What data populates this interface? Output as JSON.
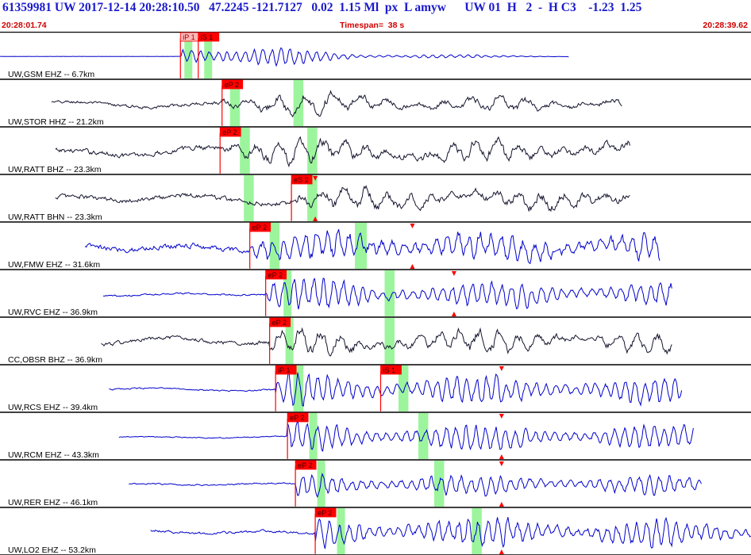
{
  "header": {
    "event_line": "61359981 UW 2017-12-14 20:28:10.50   47.2245 -121.7127   0.02  1.15 Ml  px  L amyw      UW 01  H   2  -  H C3    -1.23  1.25",
    "start_time": "20:28:01.74",
    "timespan": "Timespan=  38 s",
    "end_time": "20:28:39.62"
  },
  "colors": {
    "trace_blue": "#0000cc",
    "trace_dark": "#14142e",
    "pick_red": "#ff0000",
    "pick_pink": "#ffb6b6",
    "window_green": "#9cf59c",
    "separator": "#000000"
  },
  "chart_data": {
    "type": "line",
    "title": "",
    "x_label": "",
    "x_range_s": [
      0,
      37.88
    ],
    "channels": [
      {
        "label": "UW,GSM EHZ -- 6.7km",
        "color": "trace_blue",
        "trace_start": 0.0,
        "trace_end": 28.7,
        "noise_amp": 0.02,
        "signal_amp": 0.92,
        "decay": 0.18,
        "period": 0.45,
        "flat_pre": true,
        "picks": [
          {
            "label": "iP 1",
            "time": 9.1,
            "style": "pink"
          },
          {
            "label": "iS 1",
            "time": 10.0,
            "style": "red"
          }
        ],
        "windows": [
          [
            9.3,
            9.7
          ],
          [
            10.3,
            10.7
          ]
        ],
        "markers": []
      },
      {
        "label": "UW,STOR HHZ -- 21.2km",
        "color": "trace_dark",
        "trace_start": 2.6,
        "trace_end": 31.4,
        "noise_amp": 0.22,
        "signal_amp": 0.62,
        "decay": 0.04,
        "period": 1.4,
        "flat_pre": false,
        "picks": [
          {
            "label": "eP 2",
            "time": 11.2,
            "style": "red"
          }
        ],
        "windows": [
          [
            11.6,
            12.1
          ],
          [
            14.8,
            15.3
          ]
        ],
        "markers": []
      },
      {
        "label": "UW,RATT BHZ -- 23.3km",
        "color": "trace_dark",
        "trace_start": 2.8,
        "trace_end": 31.8,
        "noise_amp": 0.35,
        "signal_amp": 0.55,
        "decay": 0.02,
        "period": 1.1,
        "flat_pre": false,
        "picks": [
          {
            "label": "eP 2",
            "time": 11.1,
            "style": "red"
          }
        ],
        "windows": [
          [
            12.1,
            12.6
          ],
          [
            15.5,
            16.0
          ]
        ],
        "markers": []
      },
      {
        "label": "UW,RATT BHN -- 23.3km",
        "color": "trace_dark",
        "trace_start": 2.8,
        "trace_end": 31.8,
        "noise_amp": 0.35,
        "signal_amp": 0.55,
        "decay": 0.02,
        "period": 1.1,
        "flat_pre": false,
        "picks": [
          {
            "label": "eS 2",
            "time": 14.7,
            "style": "red"
          }
        ],
        "windows": [
          [
            12.3,
            12.8
          ],
          [
            15.5,
            16.0
          ]
        ],
        "markers": [
          {
            "time": 15.9,
            "type": "both"
          }
        ]
      },
      {
        "label": "UW,FMW EHZ -- 31.6km",
        "color": "trace_blue",
        "trace_start": 4.3,
        "trace_end": 33.3,
        "noise_amp": 0.38,
        "signal_amp": 0.72,
        "decay": 0.01,
        "period": 0.55,
        "flat_pre": false,
        "picks": [
          {
            "label": "eP 2",
            "time": 12.6,
            "style": "red"
          }
        ],
        "windows": [
          [
            13.6,
            14.1
          ],
          [
            17.9,
            18.5
          ]
        ],
        "markers": [
          {
            "time": 20.8,
            "type": "both"
          }
        ]
      },
      {
        "label": "UW,RVC EHZ -- 36.9km",
        "color": "trace_blue",
        "trace_start": 5.2,
        "trace_end": 33.9,
        "noise_amp": 0.12,
        "signal_amp": 0.7,
        "decay": 0.01,
        "period": 0.5,
        "flat_pre": false,
        "picks": [
          {
            "label": "eP 2",
            "time": 13.4,
            "style": "red"
          }
        ],
        "windows": [
          [
            14.3,
            14.7
          ],
          [
            19.4,
            19.9
          ]
        ],
        "markers": [
          {
            "time": 22.9,
            "type": "both"
          }
        ]
      },
      {
        "label": "CC,OBSR BHZ -- 36.9km",
        "color": "trace_dark",
        "trace_start": 5.1,
        "trace_end": 33.9,
        "noise_amp": 0.28,
        "signal_amp": 0.55,
        "decay": 0.01,
        "period": 1.0,
        "flat_pre": false,
        "picks": [
          {
            "label": "eP 2",
            "time": 13.6,
            "style": "red"
          }
        ],
        "windows": [
          [
            14.4,
            14.8
          ],
          [
            19.4,
            19.9
          ]
        ],
        "markers": []
      },
      {
        "label": "UW,RCS EHZ -- 39.4km",
        "color": "trace_blue",
        "trace_start": 5.5,
        "trace_end": 34.4,
        "noise_amp": 0.1,
        "signal_amp": 0.75,
        "decay": 0.01,
        "period": 0.5,
        "flat_pre": false,
        "picks": [
          {
            "label": "iP 1",
            "time": 13.9,
            "style": "red"
          },
          {
            "label": "iS 1",
            "time": 19.2,
            "style": "red"
          }
        ],
        "windows": [
          [
            14.8,
            15.3
          ],
          [
            20.1,
            20.6
          ]
        ],
        "markers": [
          {
            "time": 25.3,
            "type": "down"
          }
        ]
      },
      {
        "label": "UW,RCM EHZ -- 43.3km",
        "color": "trace_blue",
        "trace_start": 6.0,
        "trace_end": 35.0,
        "noise_amp": 0.07,
        "signal_amp": 0.68,
        "decay": 0.01,
        "period": 0.5,
        "flat_pre": false,
        "picks": [
          {
            "label": "eP 2",
            "time": 14.5,
            "style": "red"
          }
        ],
        "windows": [
          [
            15.6,
            16.0
          ],
          [
            21.1,
            21.6
          ]
        ],
        "markers": [
          {
            "time": 25.3,
            "type": "both"
          }
        ]
      },
      {
        "label": "UW,RER EHZ -- 46.1km",
        "color": "trace_blue",
        "trace_start": 6.5,
        "trace_end": 35.4,
        "noise_amp": 0.1,
        "signal_amp": 0.55,
        "decay": 0.01,
        "period": 0.5,
        "flat_pre": false,
        "picks": [
          {
            "label": "eP 2",
            "time": 14.9,
            "style": "red"
          }
        ],
        "windows": [
          [
            16.0,
            16.4
          ],
          [
            21.9,
            22.4
          ]
        ],
        "markers": [
          {
            "time": 25.3,
            "type": "both"
          }
        ]
      },
      {
        "label": "UW,LO2 EHZ -- 53.2km",
        "color": "trace_blue",
        "trace_start": 7.6,
        "trace_end": 37.88,
        "noise_amp": 0.18,
        "signal_amp": 0.72,
        "decay": 0.01,
        "period": 0.5,
        "flat_pre": false,
        "picks": [
          {
            "label": "eP 2",
            "time": 15.9,
            "style": "red"
          }
        ],
        "windows": [
          [
            17.0,
            17.4
          ],
          [
            23.8,
            24.3
          ]
        ],
        "markers": [
          {
            "time": 25.3,
            "type": "up"
          }
        ]
      }
    ]
  }
}
